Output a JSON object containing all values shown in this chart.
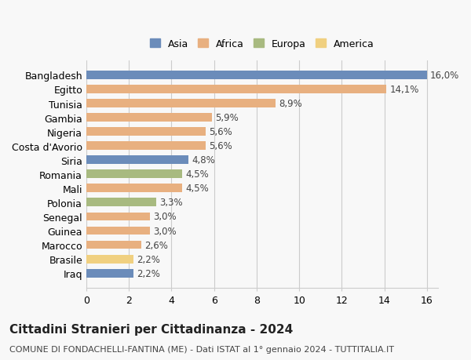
{
  "categories": [
    "Bangladesh",
    "Egitto",
    "Tunisia",
    "Gambia",
    "Nigeria",
    "Costa d'Avorio",
    "Siria",
    "Romania",
    "Mali",
    "Polonia",
    "Senegal",
    "Guinea",
    "Marocco",
    "Brasile",
    "Iraq"
  ],
  "values": [
    16.0,
    14.1,
    8.9,
    5.9,
    5.6,
    5.6,
    4.8,
    4.5,
    4.5,
    3.3,
    3.0,
    3.0,
    2.6,
    2.2,
    2.2
  ],
  "labels": [
    "16,0%",
    "14,1%",
    "8,9%",
    "5,9%",
    "5,6%",
    "5,6%",
    "4,8%",
    "4,5%",
    "4,5%",
    "3,3%",
    "3,0%",
    "3,0%",
    "2,6%",
    "2,2%",
    "2,2%"
  ],
  "continents": [
    "Asia",
    "Africa",
    "Africa",
    "Africa",
    "Africa",
    "Africa",
    "Asia",
    "Europa",
    "Africa",
    "Europa",
    "Africa",
    "Africa",
    "Africa",
    "America",
    "Asia"
  ],
  "continent_colors": {
    "Asia": "#6b8cba",
    "Africa": "#e8b080",
    "Europa": "#a8ba80",
    "America": "#f0d080"
  },
  "legend_order": [
    "Asia",
    "Africa",
    "Europa",
    "America"
  ],
  "title": "Cittadini Stranieri per Cittadinanza - 2024",
  "subtitle": "COMUNE DI FONDACHELLI-FANTINA (ME) - Dati ISTAT al 1° gennaio 2024 - TUTTITALIA.IT",
  "xlim": [
    0,
    16
  ],
  "xticks": [
    0,
    2,
    4,
    6,
    8,
    10,
    12,
    14,
    16
  ],
  "background_color": "#f8f8f8",
  "grid_color": "#cccccc",
  "bar_height": 0.6,
  "title_fontsize": 11,
  "subtitle_fontsize": 8,
  "tick_fontsize": 9,
  "label_fontsize": 8.5,
  "legend_fontsize": 9
}
